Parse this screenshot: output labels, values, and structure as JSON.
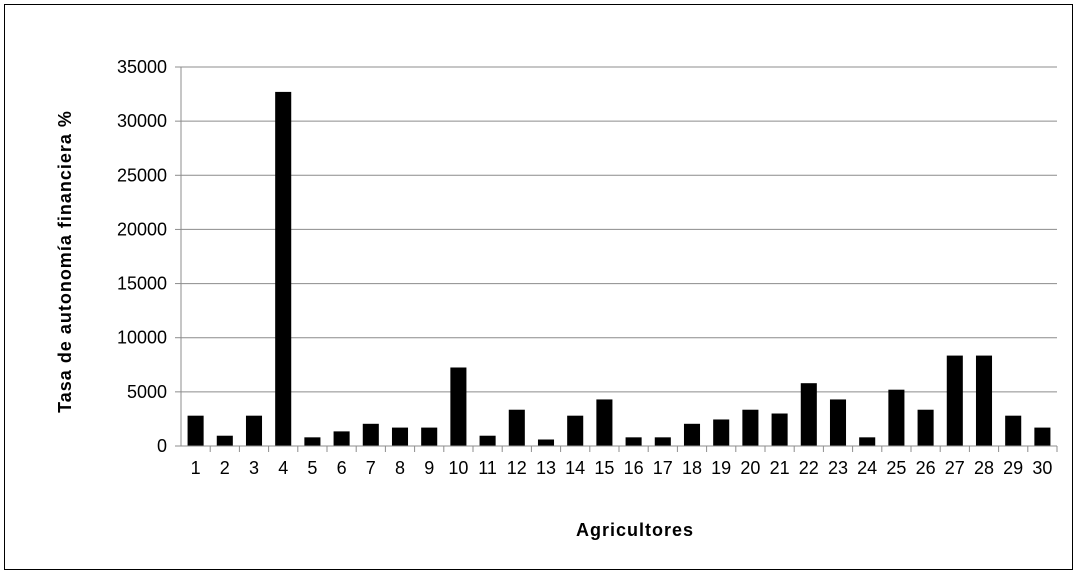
{
  "chart_data": {
    "type": "bar",
    "title": "",
    "xlabel": "Agricultores",
    "ylabel": "Tasa de autonomía financiera %",
    "ylim": [
      0,
      35000
    ],
    "yticks": [
      0,
      5000,
      10000,
      15000,
      20000,
      25000,
      30000,
      35000
    ],
    "grid": true,
    "legend": "none",
    "bar_color": "#000000",
    "categories": [
      "1",
      "2",
      "3",
      "4",
      "5",
      "6",
      "7",
      "8",
      "9",
      "10",
      "11",
      "12",
      "13",
      "14",
      "15",
      "16",
      "17",
      "18",
      "19",
      "20",
      "21",
      "22",
      "23",
      "24",
      "25",
      "26",
      "27",
      "28",
      "29",
      "30"
    ],
    "values": [
      2800,
      950,
      2800,
      32700,
      800,
      1350,
      2050,
      1700,
      1700,
      7250,
      950,
      3350,
      600,
      2800,
      4300,
      800,
      800,
      2050,
      2450,
      3350,
      3000,
      5800,
      4300,
      800,
      5200,
      3350,
      8350,
      8350,
      2800,
      1700
    ]
  }
}
